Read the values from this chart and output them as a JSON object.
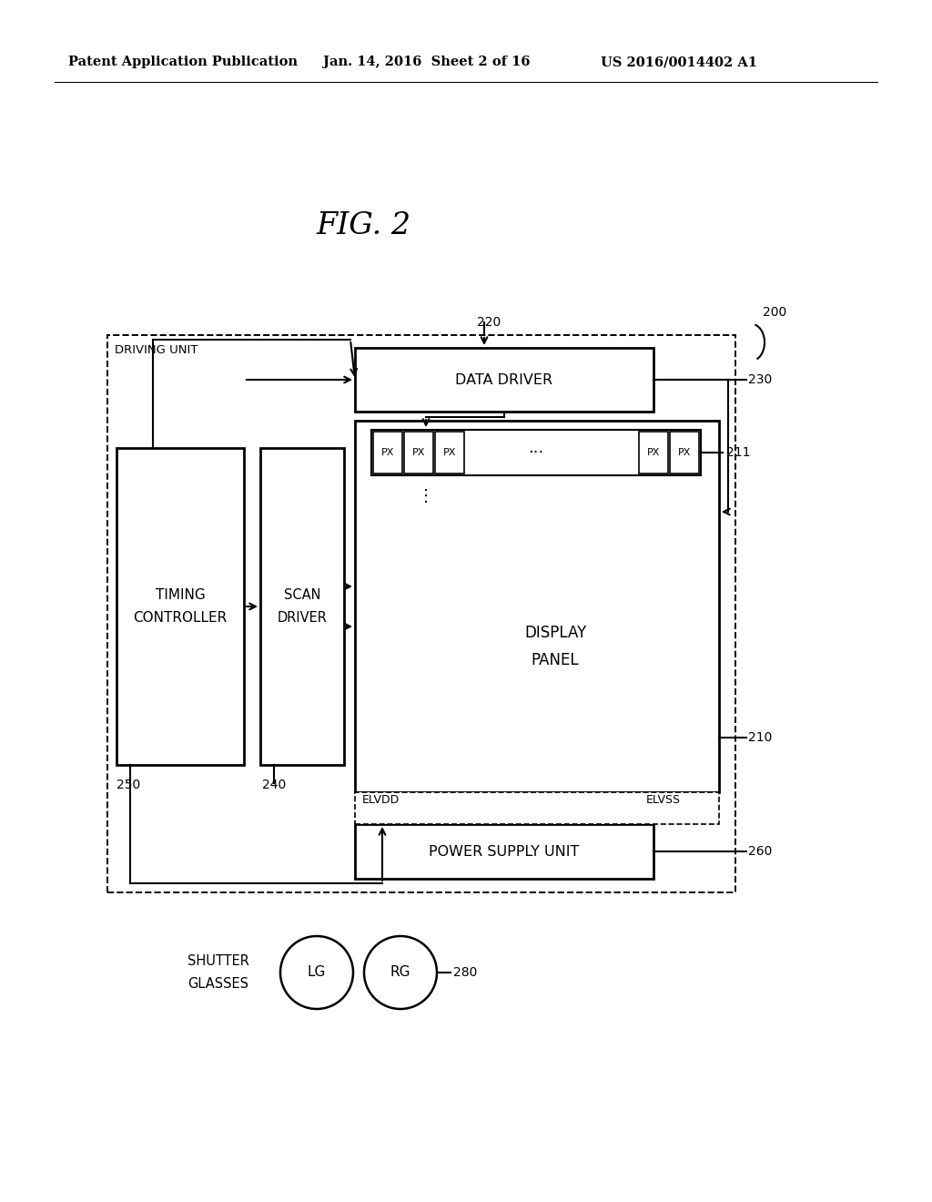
{
  "title": "FIG. 2",
  "header_left": "Patent Application Publication",
  "header_mid": "Jan. 14, 2016  Sheet 2 of 16",
  "header_right": "US 2016/0014402 A1",
  "bg_color": "#ffffff",
  "text_color": "#000000",
  "label_200": "200",
  "label_220": "220",
  "label_230": "230",
  "label_211": "211",
  "label_210": "210",
  "label_250": "250",
  "label_240": "240",
  "label_260": "260",
  "label_280": "280",
  "driving_unit_text": "DRIVING UNIT",
  "data_driver_text": "DATA DRIVER",
  "timing_controller_text": "TIMING\nCONTROLLER",
  "scan_driver_text": "SCAN\nDRIVER",
  "display_panel_text": "DISPLAY\nPANEL",
  "power_supply_unit_text": "POWER SUPPLY UNIT",
  "elvdd_text": "ELVDD",
  "elvss_text": "ELVSS",
  "shutter_glasses_text": "SHUTTER\nGLASSES",
  "lg_text": "LG",
  "rg_text": "RG",
  "px_text": "PX"
}
